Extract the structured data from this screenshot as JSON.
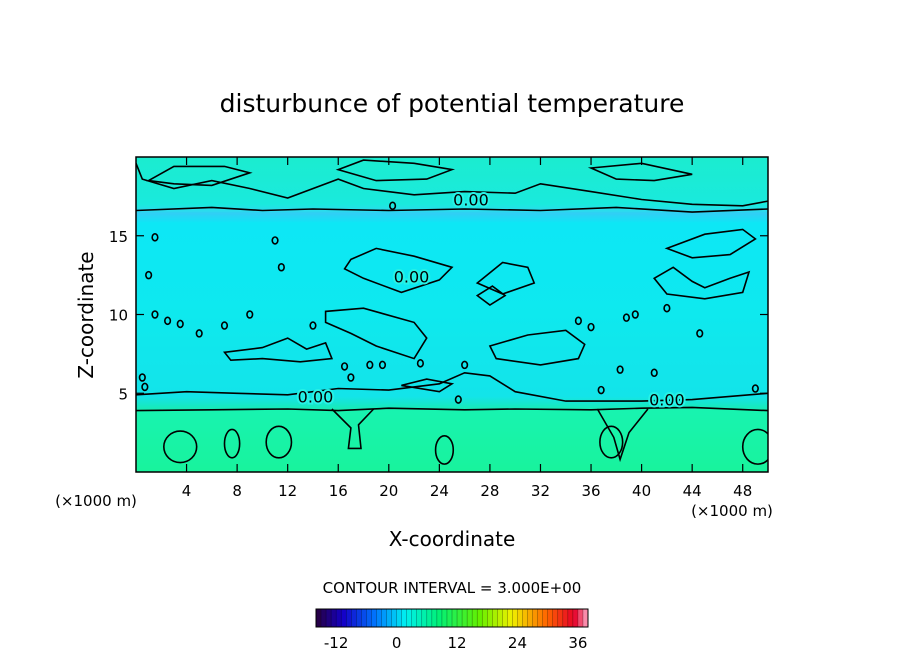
{
  "chart_data": {
    "type": "contour",
    "title": "disturbunce of potential temperature",
    "xlabel": "X-coordinate",
    "ylabel": "Z-coordinate",
    "x_unit_label": "(×1000 m)",
    "z_unit_label": "(×1000 m)",
    "xlim": [
      0,
      50
    ],
    "ylim": [
      0,
      20
    ],
    "x_ticks": [
      4,
      8,
      12,
      16,
      20,
      24,
      28,
      32,
      36,
      40,
      44,
      48
    ],
    "y_ticks": [
      5,
      10,
      15
    ],
    "contour_interval_text": "CONTOUR INTERVAL = 3.000E+00",
    "contour_labels": [
      {
        "text": "0.00",
        "x": 26.5,
        "z": 17.3
      },
      {
        "text": "0.00",
        "x": 21.8,
        "z": 12.4
      },
      {
        "text": "0.00",
        "x": 14.2,
        "z": 4.8
      },
      {
        "text": "0.00",
        "x": 42.0,
        "z": 4.6
      }
    ],
    "colorbar": {
      "range": [
        -16,
        38
      ],
      "tick_values": [
        -12,
        0,
        12,
        24,
        36
      ],
      "tick_labels": [
        "-12",
        "0",
        "12",
        "24",
        "36"
      ]
    },
    "field_summary": [
      {
        "z_range": [
          0,
          4
        ],
        "value": 3
      },
      {
        "z_range": [
          4,
          16.5
        ],
        "value": -1
      },
      {
        "z_range": [
          16.5,
          20
        ],
        "value": 0.5
      }
    ],
    "colors": {
      "lower_layer": "#1EF58C",
      "middle_layer": "#10F5F0",
      "upper_layer": "#1EF2CF",
      "contour": "#000000"
    }
  }
}
